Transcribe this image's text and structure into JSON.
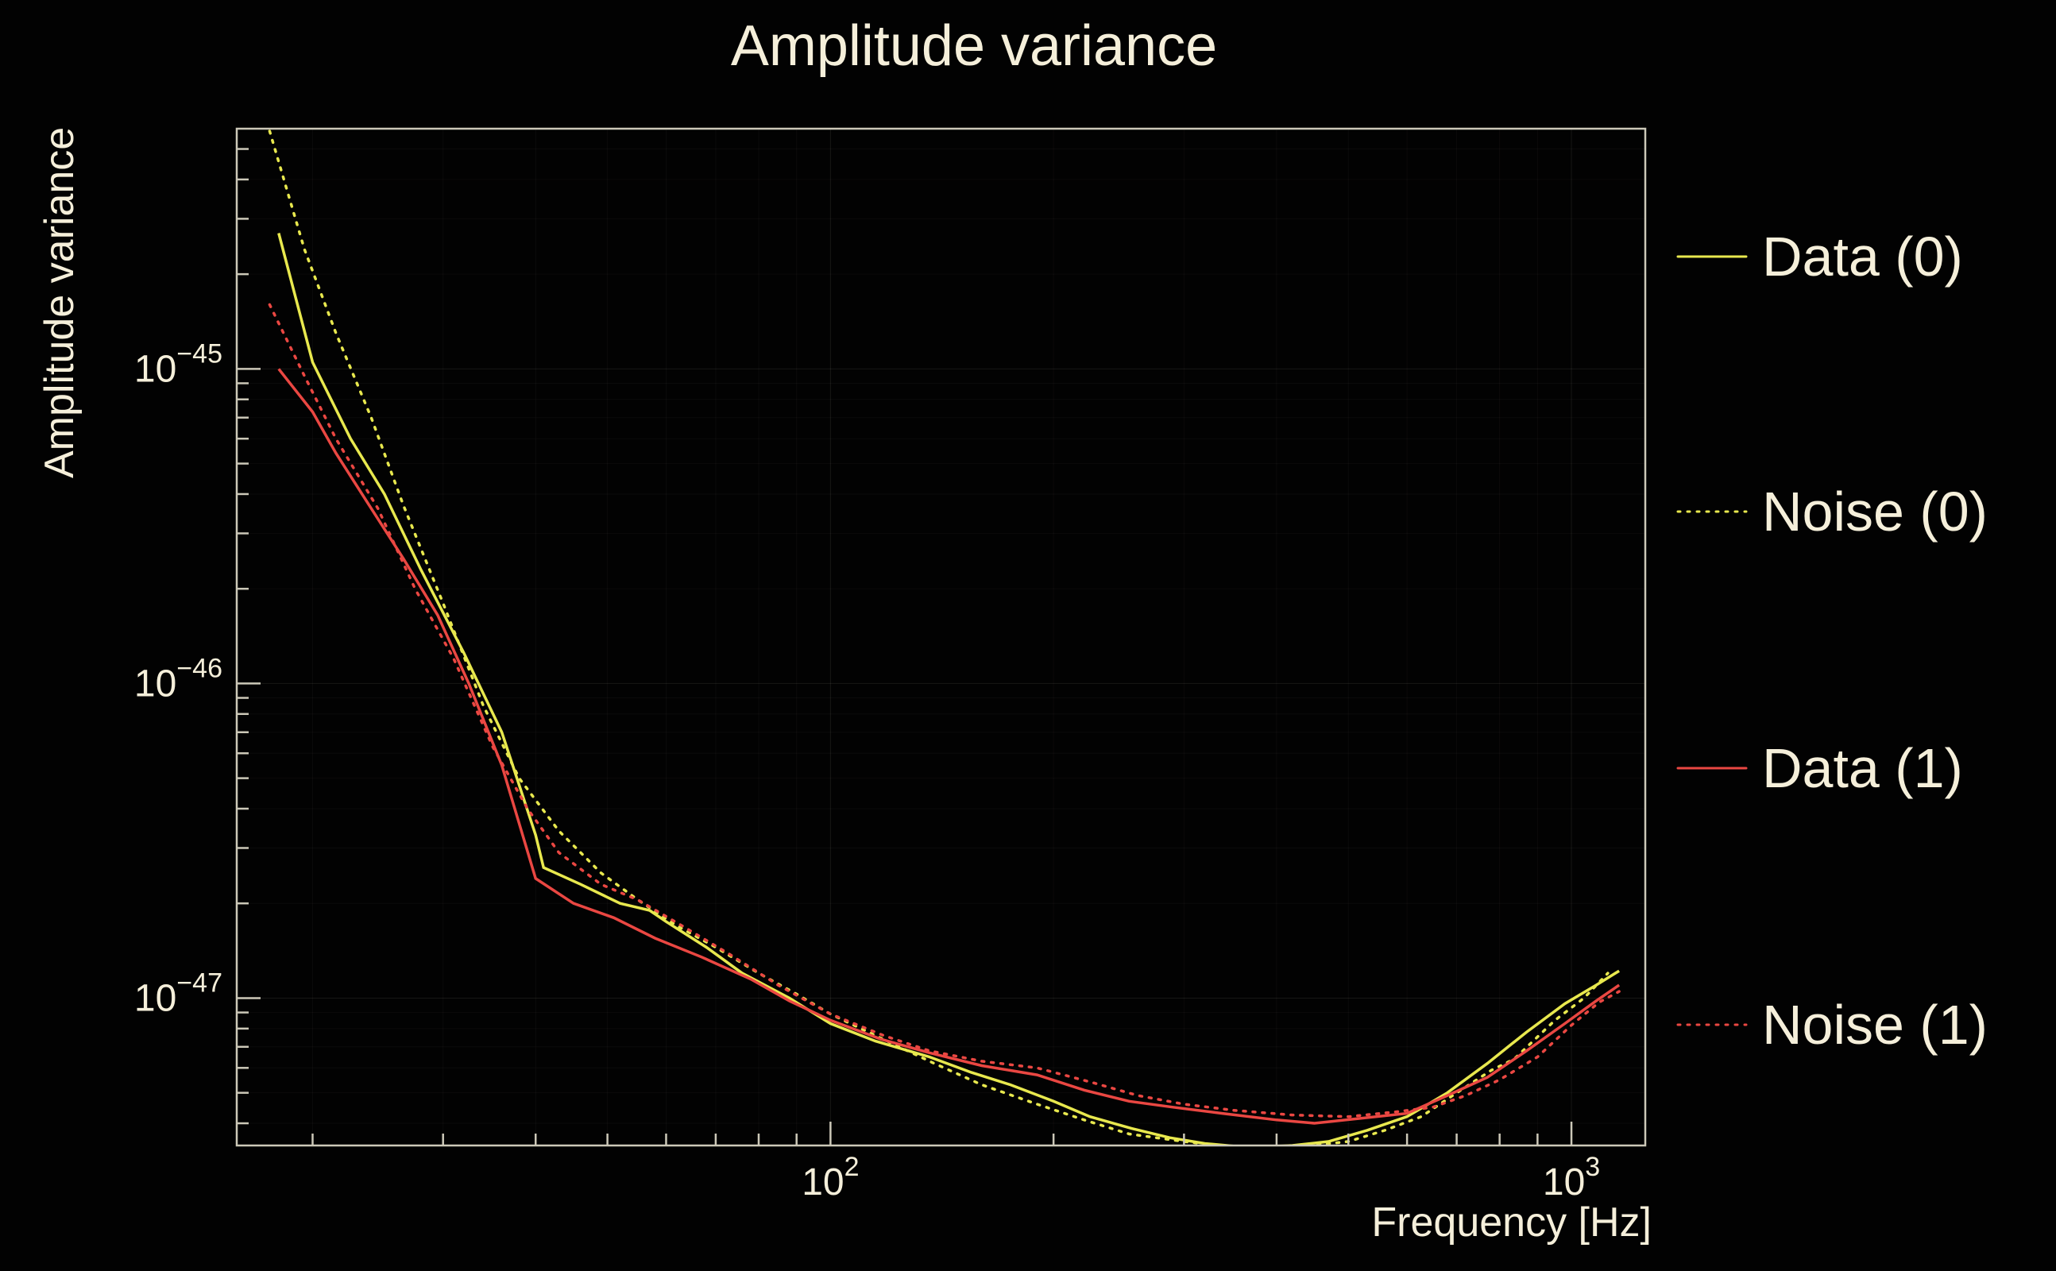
{
  "title": "Amplitude variance",
  "x_axis": {
    "label": "Frequency [Hz]",
    "major_ticks": [
      {
        "value": 100,
        "mantissa": "10",
        "exp": "2"
      },
      {
        "value": 1000,
        "mantissa": "10",
        "exp": "3"
      }
    ]
  },
  "y_axis": {
    "label": "Amplitude variance",
    "major_ticks": [
      {
        "value": 1e-47,
        "mantissa": "10",
        "exp": "−47"
      },
      {
        "value": 1e-46,
        "mantissa": "10",
        "exp": "−46"
      },
      {
        "value": 1e-45,
        "mantissa": "10",
        "exp": "−45"
      }
    ]
  },
  "colors": {
    "background": "#020202",
    "text": "#f5efda",
    "frame": "#ccc8b8",
    "series_yellow": "#e8e84e",
    "series_red": "#ea4742"
  },
  "chart_data": {
    "type": "line",
    "title": "Amplitude variance",
    "xlabel": "Frequency [Hz]",
    "ylabel": "Amplitude variance",
    "xscale": "log",
    "yscale": "log",
    "xlim": [
      15.8,
      1258
    ],
    "ylim": [
      3.4e-48,
      5.8e-45
    ],
    "grid": true,
    "legend_position": "right",
    "series": [
      {
        "name": "Data (0)",
        "color": "#e8e84e",
        "style": "solid",
        "points": [
          [
            18,
            2.7e-45
          ],
          [
            20,
            1.05e-45
          ],
          [
            22.5,
            6e-46
          ],
          [
            25,
            4e-46
          ],
          [
            28,
            2.3e-46
          ],
          [
            32,
            1.25e-46
          ],
          [
            36,
            7e-47
          ],
          [
            40,
            3.3e-47
          ],
          [
            41,
            2.6e-47
          ],
          [
            46,
            2.3e-47
          ],
          [
            52,
            2e-47
          ],
          [
            57,
            1.9e-47
          ],
          [
            60,
            1.75e-47
          ],
          [
            68,
            1.45e-47
          ],
          [
            76,
            1.2e-47
          ],
          [
            88,
            1e-47
          ],
          [
            100,
            8.3e-48
          ],
          [
            115,
            7.3e-48
          ],
          [
            136,
            6.5e-48
          ],
          [
            155,
            5.8e-48
          ],
          [
            175,
            5.3e-48
          ],
          [
            200,
            4.7e-48
          ],
          [
            224,
            4.2e-48
          ],
          [
            255,
            3.85e-48
          ],
          [
            287,
            3.6e-48
          ],
          [
            320,
            3.45e-48
          ],
          [
            367,
            3.35e-48
          ],
          [
            420,
            3.4e-48
          ],
          [
            470,
            3.5e-48
          ],
          [
            530,
            3.8e-48
          ],
          [
            600,
            4.2e-48
          ],
          [
            680,
            5e-48
          ],
          [
            770,
            6.2e-48
          ],
          [
            870,
            7.8e-48
          ],
          [
            980,
            9.6e-48
          ],
          [
            1080,
            1.1e-47
          ],
          [
            1160,
            1.22e-47
          ]
        ]
      },
      {
        "name": "Noise (0)",
        "color": "#e8e84e",
        "style": "dotted",
        "points": [
          [
            17.5,
            5.7e-45
          ],
          [
            19.5,
            2.4e-45
          ],
          [
            21.5,
            1.3e-45
          ],
          [
            24,
            7e-46
          ],
          [
            26.5,
            3.7e-46
          ],
          [
            30,
            1.8e-46
          ],
          [
            34,
            8.5e-47
          ],
          [
            38,
            5e-47
          ],
          [
            43,
            3.4e-47
          ],
          [
            49,
            2.5e-47
          ],
          [
            55,
            2.05e-47
          ],
          [
            62,
            1.7e-47
          ],
          [
            70,
            1.45e-47
          ],
          [
            80,
            1.2e-47
          ],
          [
            90,
            1.03e-47
          ],
          [
            100,
            8.9e-48
          ],
          [
            115,
            7.6e-48
          ],
          [
            136,
            6.3e-48
          ],
          [
            160,
            5.3e-48
          ],
          [
            190,
            4.6e-48
          ],
          [
            220,
            4.1e-48
          ],
          [
            253,
            3.7e-48
          ],
          [
            300,
            3.5e-48
          ],
          [
            352,
            3.35e-48
          ],
          [
            420,
            3.35e-48
          ],
          [
            500,
            3.5e-48
          ],
          [
            560,
            3.8e-48
          ],
          [
            627,
            4.2e-48
          ],
          [
            700,
            5e-48
          ],
          [
            780,
            5.9e-48
          ],
          [
            837,
            6.4e-48
          ],
          [
            950,
            8.5e-48
          ],
          [
            1040,
            1e-47
          ],
          [
            1120,
            1.2e-47
          ]
        ]
      },
      {
        "name": "Data (1)",
        "color": "#ea4742",
        "style": "solid",
        "points": [
          [
            18,
            1e-45
          ],
          [
            20,
            7.3e-46
          ],
          [
            21.5,
            5.4e-46
          ],
          [
            24,
            3.6e-46
          ],
          [
            26.5,
            2.5e-46
          ],
          [
            29.5,
            1.65e-46
          ],
          [
            32.5,
            1e-46
          ],
          [
            36,
            5.5e-47
          ],
          [
            40,
            2.4e-47
          ],
          [
            45,
            2e-47
          ],
          [
            51,
            1.8e-47
          ],
          [
            58,
            1.55e-47
          ],
          [
            67,
            1.35e-47
          ],
          [
            78,
            1.15e-47
          ],
          [
            88,
            9.8e-48
          ],
          [
            100,
            8.5e-48
          ],
          [
            117,
            7.4e-48
          ],
          [
            136,
            6.7e-48
          ],
          [
            160,
            6.1e-48
          ],
          [
            190,
            5.7e-48
          ],
          [
            220,
            5.1e-48
          ],
          [
            253,
            4.7e-48
          ],
          [
            290,
            4.5e-48
          ],
          [
            338,
            4.3e-48
          ],
          [
            400,
            4.1e-48
          ],
          [
            450,
            4e-48
          ],
          [
            520,
            4.15e-48
          ],
          [
            600,
            4.3e-48
          ],
          [
            680,
            4.9e-48
          ],
          [
            770,
            5.6e-48
          ],
          [
            870,
            6.8e-48
          ],
          [
            980,
            8.3e-48
          ],
          [
            1080,
            9.8e-48
          ],
          [
            1160,
            1.1e-47
          ]
        ]
      },
      {
        "name": "Noise (1)",
        "color": "#ea4742",
        "style": "dotted",
        "points": [
          [
            17.5,
            1.6e-45
          ],
          [
            19.5,
            9.5e-46
          ],
          [
            21.5,
            6e-46
          ],
          [
            24.5,
            3.6e-46
          ],
          [
            27.5,
            2e-46
          ],
          [
            31,
            1.2e-46
          ],
          [
            35,
            6.3e-47
          ],
          [
            39,
            4e-47
          ],
          [
            43,
            2.9e-47
          ],
          [
            49,
            2.3e-47
          ],
          [
            55,
            2.05e-47
          ],
          [
            63,
            1.7e-47
          ],
          [
            73,
            1.38e-47
          ],
          [
            85,
            1.1e-47
          ],
          [
            100,
            8.9e-48
          ],
          [
            118,
            7.6e-48
          ],
          [
            136,
            6.8e-48
          ],
          [
            160,
            6.3e-48
          ],
          [
            190,
            6e-48
          ],
          [
            225,
            5.4e-48
          ],
          [
            260,
            4.9e-48
          ],
          [
            300,
            4.6e-48
          ],
          [
            350,
            4.4e-48
          ],
          [
            420,
            4.25e-48
          ],
          [
            500,
            4.2e-48
          ],
          [
            580,
            4.35e-48
          ],
          [
            650,
            4.5e-48
          ],
          [
            720,
            4.9e-48
          ],
          [
            800,
            5.5e-48
          ],
          [
            900,
            6.5e-48
          ],
          [
            1000,
            8.2e-48
          ],
          [
            1090,
            9.7e-48
          ],
          [
            1160,
            1.05e-47
          ]
        ]
      }
    ],
    "legend": [
      {
        "label": "Data (0)"
      },
      {
        "label": "Noise (0)"
      },
      {
        "label": "Data (1)"
      },
      {
        "label": "Noise (1)"
      }
    ]
  }
}
